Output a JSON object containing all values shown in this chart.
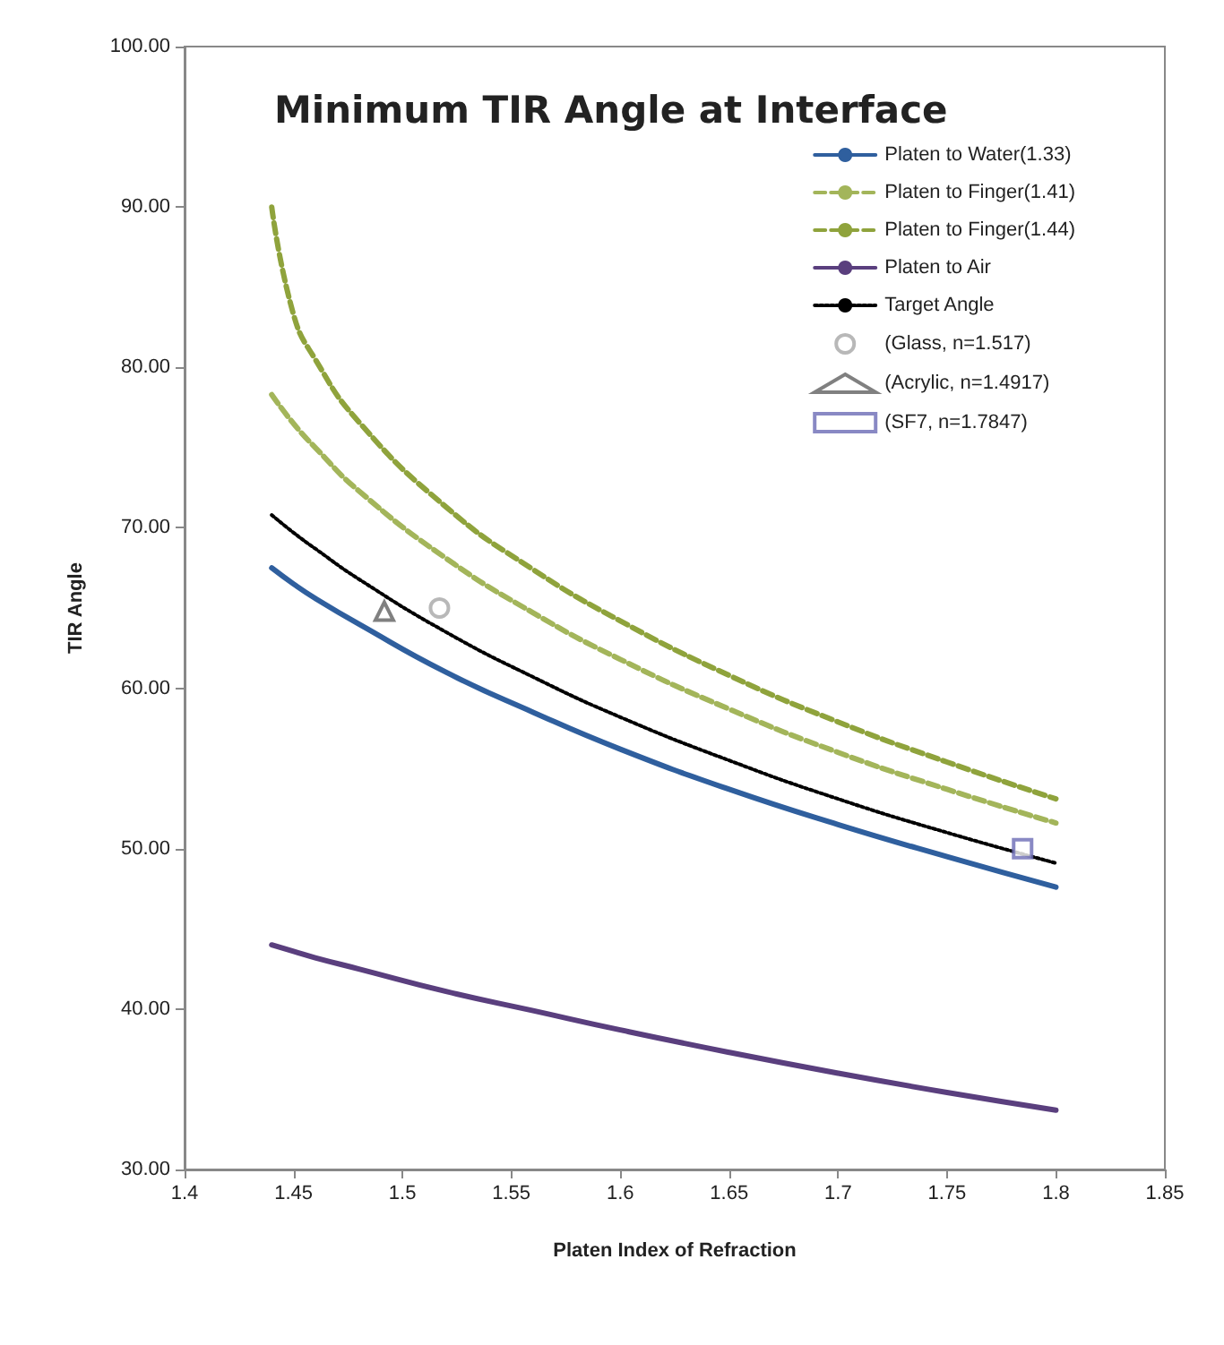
{
  "chart_data": {
    "type": "line",
    "title": "Minimum TIR Angle at Interface",
    "xlabel": "Platen Index of Refraction",
    "ylabel": "TIR Angle",
    "x": [
      1.44,
      1.45,
      1.46,
      1.48,
      1.52,
      1.56,
      1.6,
      1.65,
      1.7,
      1.75,
      1.8
    ],
    "series": [
      {
        "name": "Platen to Water(1.33)",
        "color": "#2f5f9e",
        "line_style": "solid",
        "values": [
          67.5,
          66.5,
          65.6,
          64.0,
          61.0,
          58.5,
          56.2,
          53.7,
          51.5,
          49.5,
          47.6
        ]
      },
      {
        "name": "Platen to Finger(1.41)",
        "color": "#a3b55a",
        "line_style": "dashed",
        "values": [
          78.3,
          76.5,
          75.0,
          72.3,
          68.1,
          64.7,
          61.8,
          58.7,
          56.0,
          53.7,
          51.6
        ]
      },
      {
        "name": "Platen to Finger(1.44)",
        "color": "#8fa33c",
        "line_style": "dashed",
        "values": [
          90.0,
          83.3,
          80.5,
          76.6,
          71.3,
          67.4,
          64.2,
          60.8,
          57.9,
          55.4,
          53.1
        ]
      },
      {
        "name": "Platen to Air",
        "color": "#5a3f7e",
        "line_style": "solid",
        "values": [
          44.0,
          43.6,
          43.2,
          42.5,
          41.1,
          39.9,
          38.7,
          37.3,
          36.0,
          34.8,
          33.7
        ]
      },
      {
        "name": "Target Angle",
        "color": "#000000",
        "line_style": "dotted",
        "values": [
          70.8,
          69.7,
          68.7,
          66.8,
          63.5,
          60.7,
          58.2,
          55.5,
          53.1,
          51.0,
          49.1
        ]
      },
      {
        "name": "(Glass, n=1.517)",
        "type": "scatter",
        "marker": "circle",
        "color": "#a6a6a6",
        "x": [
          1.517
        ],
        "values": [
          65.0
        ]
      },
      {
        "name": "(Acrylic, n=1.4917)",
        "type": "scatter",
        "marker": "triangle",
        "color": "#606060",
        "x": [
          1.4917
        ],
        "values": [
          64.8
        ]
      },
      {
        "name": "(SF7, n=1.7847)",
        "type": "scatter",
        "marker": "square",
        "color": "#6b6bb5",
        "x": [
          1.7847
        ],
        "values": [
          50.0
        ]
      }
    ],
    "xlim": [
      1.4,
      1.85
    ],
    "xticks": [
      1.4,
      1.45,
      1.5,
      1.55,
      1.6,
      1.65,
      1.7,
      1.75,
      1.8,
      1.85
    ],
    "ylim": [
      30,
      100
    ],
    "yticks": [
      {
        "value": 30,
        "label": "30.00"
      },
      {
        "value": 40,
        "label": "40.00"
      },
      {
        "value": 50,
        "label": "50.00"
      },
      {
        "value": 60,
        "label": "60.00"
      },
      {
        "value": 70,
        "label": "70.00"
      },
      {
        "value": 80,
        "label": "80.00"
      },
      {
        "value": 90,
        "label": "90.00"
      },
      {
        "value": 100,
        "label": "100.00"
      }
    ],
    "grid": false,
    "legend": "top right",
    "marker": "none"
  }
}
